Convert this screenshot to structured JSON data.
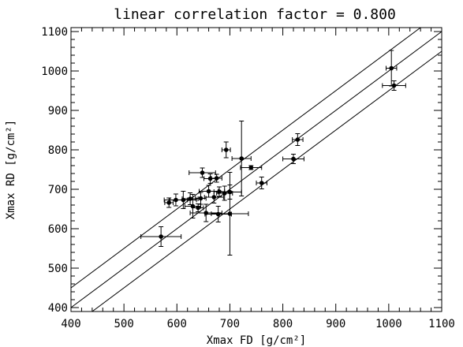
{
  "chart_data": {
    "type": "scatter",
    "title": "linear correlation factor = 0.800",
    "xlabel": "Xmax FD [g/cm²]",
    "ylabel": "Xmax RD [g/cm²]",
    "xlim": [
      400,
      1100
    ],
    "ylim": [
      390,
      1110
    ],
    "x_ticks": [
      400,
      500,
      600,
      700,
      800,
      900,
      1000,
      1100
    ],
    "y_ticks": [
      400,
      500,
      600,
      700,
      800,
      900,
      1000,
      1100
    ],
    "grid": false,
    "lines": [
      {
        "slope": 1,
        "intercept": 50
      },
      {
        "slope": 1,
        "intercept": 0
      },
      {
        "slope": 1,
        "intercept": -50
      }
    ],
    "points": [
      {
        "x": 570,
        "y": 580,
        "xerr": 38,
        "yerr": 25
      },
      {
        "x": 585,
        "y": 666,
        "xerr": 8,
        "yerr": 12
      },
      {
        "x": 598,
        "y": 673,
        "xerr": 22,
        "yerr": 15
      },
      {
        "x": 612,
        "y": 673,
        "xerr": 25,
        "yerr": 22
      },
      {
        "x": 625,
        "y": 676,
        "xerr": 15,
        "yerr": 15
      },
      {
        "x": 630,
        "y": 657,
        "xerr": 15,
        "yerr": 30
      },
      {
        "x": 640,
        "y": 653,
        "xerr": 10,
        "yerr": 10
      },
      {
        "x": 645,
        "y": 677,
        "xerr": 10,
        "yerr": 15
      },
      {
        "x": 648,
        "y": 742,
        "xerr": 25,
        "yerr": 12
      },
      {
        "x": 655,
        "y": 640,
        "xerr": 30,
        "yerr": 22
      },
      {
        "x": 660,
        "y": 695,
        "xerr": 18,
        "yerr": 15
      },
      {
        "x": 663,
        "y": 727,
        "xerr": 12,
        "yerr": 12
      },
      {
        "x": 670,
        "y": 680,
        "xerr": 18,
        "yerr": 15
      },
      {
        "x": 675,
        "y": 728,
        "xerr": 10,
        "yerr": 10
      },
      {
        "x": 678,
        "y": 637,
        "xerr": 25,
        "yerr": 20
      },
      {
        "x": 680,
        "y": 694,
        "xerr": 10,
        "yerr": 12
      },
      {
        "x": 690,
        "y": 690,
        "xerr": 15,
        "yerr": 18
      },
      {
        "x": 693,
        "y": 800,
        "xerr": 8,
        "yerr": 20
      },
      {
        "x": 700,
        "y": 638,
        "xerr": 35,
        "yerr": 105
      },
      {
        "x": 700,
        "y": 693,
        "xerr": 22,
        "yerr": 18
      },
      {
        "x": 722,
        "y": 778,
        "xerr": 18,
        "yerr": 95
      },
      {
        "x": 740,
        "y": 755,
        "xerr": 20,
        "yerr": 5
      },
      {
        "x": 760,
        "y": 716,
        "xerr": 10,
        "yerr": 15
      },
      {
        "x": 820,
        "y": 777,
        "xerr": 20,
        "yerr": 12
      },
      {
        "x": 828,
        "y": 826,
        "xerr": 10,
        "yerr": 15
      },
      {
        "x": 1005,
        "y": 1007,
        "xerr": 10,
        "yerr": 45
      },
      {
        "x": 1010,
        "y": 963,
        "xerr": 22,
        "yerr": 12
      }
    ]
  }
}
